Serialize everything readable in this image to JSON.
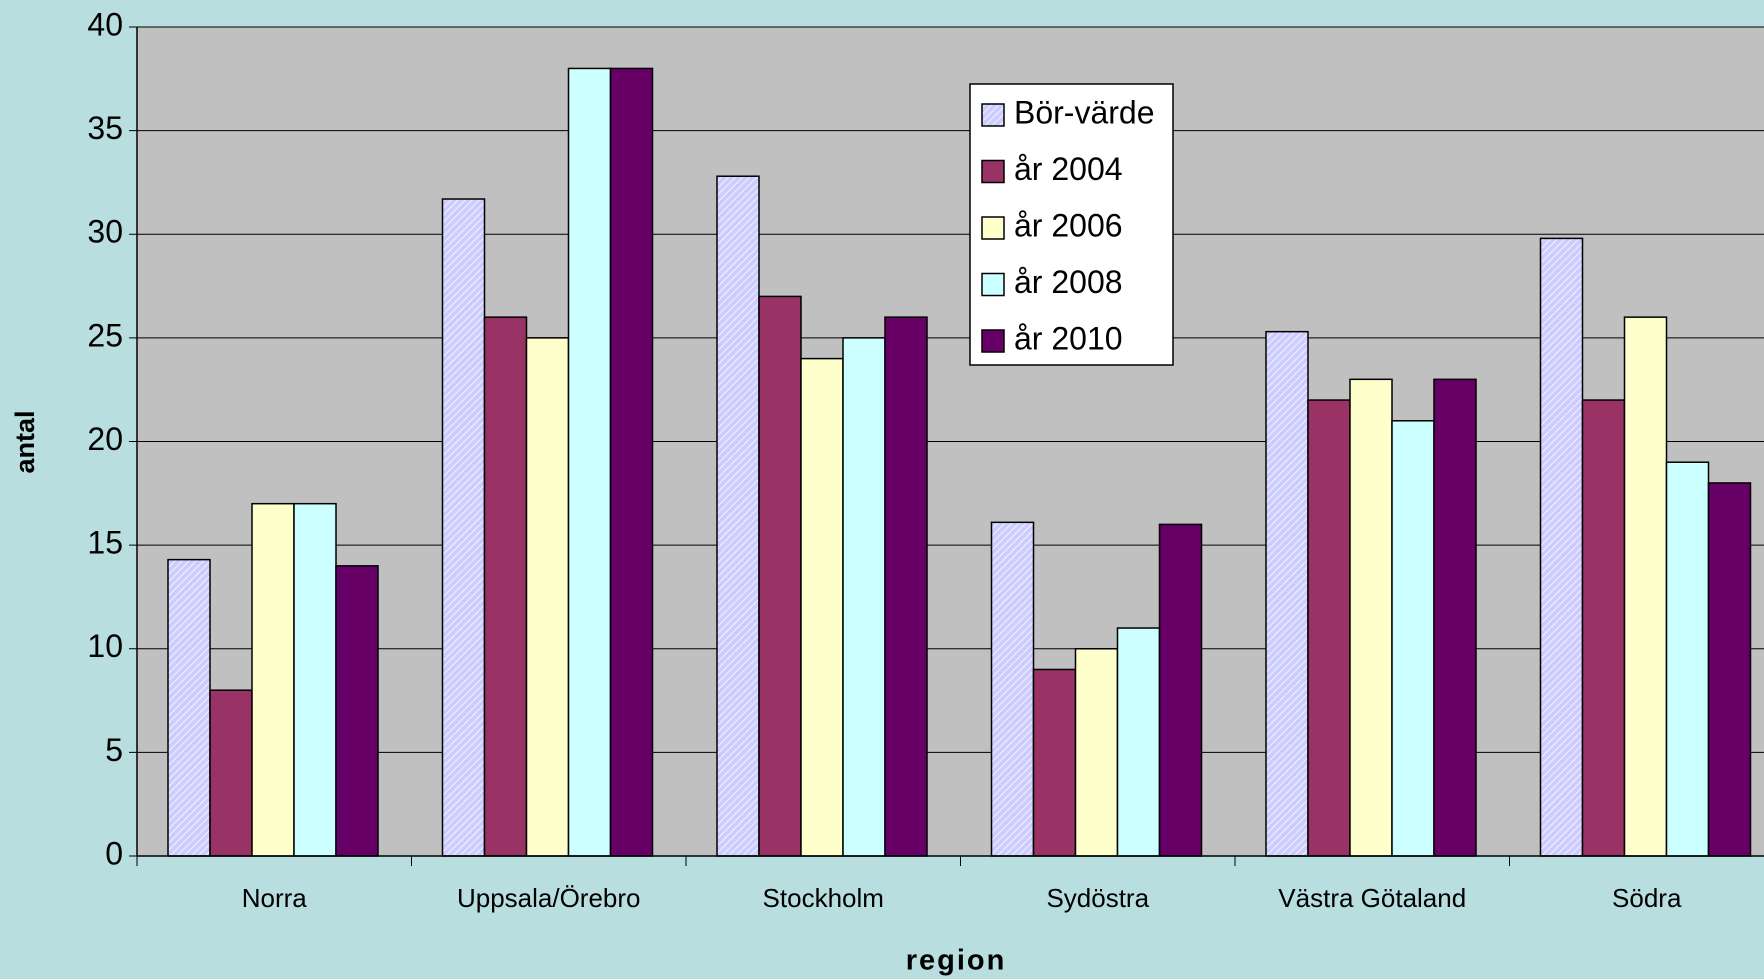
{
  "chart_data": {
    "type": "bar",
    "categories": [
      "Norra",
      "Uppsala/Örebro",
      "Stockholm",
      "Sydöstra",
      "Västra Götaland",
      "Södra"
    ],
    "series": [
      {
        "name": "Bör-värde",
        "color": "#ccccff",
        "hatched": true,
        "values": [
          14.3,
          31.7,
          32.8,
          16.1,
          25.3,
          29.8
        ]
      },
      {
        "name": "år 2004",
        "color": "#993366",
        "values": [
          8,
          26,
          27,
          9,
          22,
          22
        ]
      },
      {
        "name": "år 2006",
        "color": "#ffffcc",
        "values": [
          17,
          25,
          24,
          10,
          23,
          26
        ]
      },
      {
        "name": "år 2008",
        "color": "#ccffff",
        "values": [
          17,
          38,
          25,
          11,
          21,
          19
        ]
      },
      {
        "name": "år 2010",
        "color": "#660066",
        "values": [
          14,
          38,
          26,
          16,
          23,
          18
        ]
      }
    ],
    "xlabel": "region",
    "ylabel": "antal",
    "ylim": [
      0,
      40
    ],
    "yticks": [
      0,
      5,
      10,
      15,
      20,
      25,
      30,
      35,
      40
    ],
    "grid": true,
    "legend": "top-center"
  }
}
